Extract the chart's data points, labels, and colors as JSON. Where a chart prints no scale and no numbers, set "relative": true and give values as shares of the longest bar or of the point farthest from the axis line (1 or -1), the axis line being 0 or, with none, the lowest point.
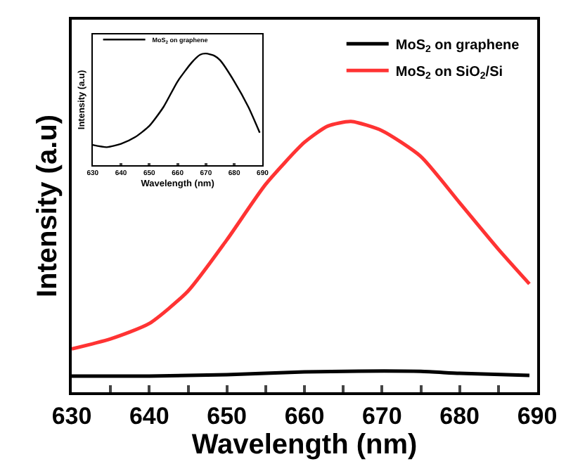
{
  "chart_data": [
    {
      "type": "line",
      "relative": true,
      "xlabel": "Wavelength (nm)",
      "ylabel": "Intensity (a.u)",
      "x": [
        630,
        635,
        640,
        645,
        650,
        655,
        660,
        663,
        666,
        670,
        675,
        680,
        685,
        689
      ],
      "xlim": [
        630,
        690
      ],
      "xticks": [
        630,
        {
          "value": 635,
          "label": null
        },
        640,
        {
          "value": 645,
          "label": null
        },
        650,
        {
          "value": 655,
          "label": null
        },
        660,
        {
          "value": 665,
          "label": null
        },
        670,
        {
          "value": 675,
          "label": null
        },
        680,
        {
          "value": 685,
          "label": null
        },
        690
      ],
      "series": [
        {
          "name": "MoS$_{2}$ on graphene",
          "color": "#000000",
          "x": [
            630,
            640,
            650,
            660,
            667,
            675,
            680,
            689
          ],
          "values": [
            0.06,
            0.06,
            0.065,
            0.075,
            0.078,
            0.077,
            0.07,
            0.062
          ]
        },
        {
          "name": "MoS$_{2}$ on SiO$_{2}$/Si",
          "color": "#ff3333",
          "values": [
            0.16,
            0.197,
            0.254,
            0.374,
            0.563,
            0.768,
            0.923,
            0.983,
            1.0,
            0.966,
            0.871,
            0.7,
            0.528,
            0.4
          ]
        }
      ],
      "legend": "top right"
    },
    {
      "type": "line",
      "relative": true,
      "xlabel": "Wavelength (nm)",
      "ylabel": "Intensity (a.u)",
      "x": [
        630,
        635,
        640,
        645,
        650,
        655,
        660,
        665,
        668,
        670,
        673,
        675,
        680,
        685,
        689
      ],
      "xlim": [
        630,
        690
      ],
      "xticks": [
        630,
        640,
        650,
        660,
        670,
        680,
        690
      ],
      "series": [
        {
          "name": "MoS$_{2}$ on graphene",
          "color": "#000000",
          "values": [
            0.18,
            0.16,
            0.19,
            0.25,
            0.35,
            0.52,
            0.75,
            0.92,
            0.99,
            1.0,
            0.98,
            0.94,
            0.75,
            0.52,
            0.29
          ]
        }
      ],
      "legend": "top left"
    }
  ]
}
